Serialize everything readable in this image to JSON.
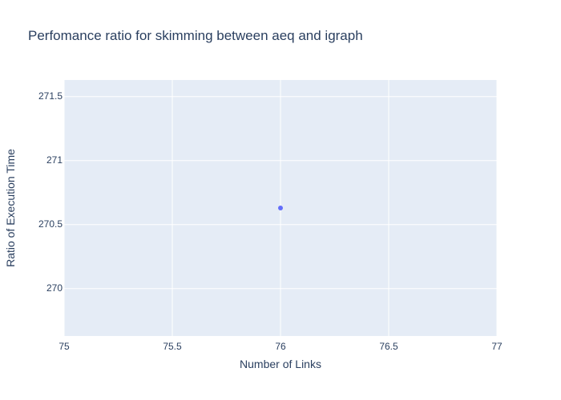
{
  "chart_data": {
    "type": "scatter",
    "title": "Perfomance ratio for skimming between aeq and igraph",
    "xlabel": "Number of Links",
    "ylabel": "Ratio of Execution Time",
    "xlim": [
      75,
      77
    ],
    "ylim": [
      269.63,
      271.63
    ],
    "x_ticks": [
      75,
      75.5,
      76,
      76.5,
      77
    ],
    "x_tick_labels": [
      "75",
      "75.5",
      "76",
      "76.5",
      "77"
    ],
    "y_ticks": [
      270,
      270.5,
      271,
      271.5
    ],
    "y_tick_labels": [
      "270",
      "270.5",
      "271",
      "271.5"
    ],
    "grid": true,
    "series": [
      {
        "x": [
          76
        ],
        "y": [
          270.63
        ]
      }
    ],
    "colors": {
      "plot_bg": "#e5ecf6",
      "grid": "#ffffff",
      "marker": "#636efa",
      "text": "#2a3f5f"
    }
  }
}
